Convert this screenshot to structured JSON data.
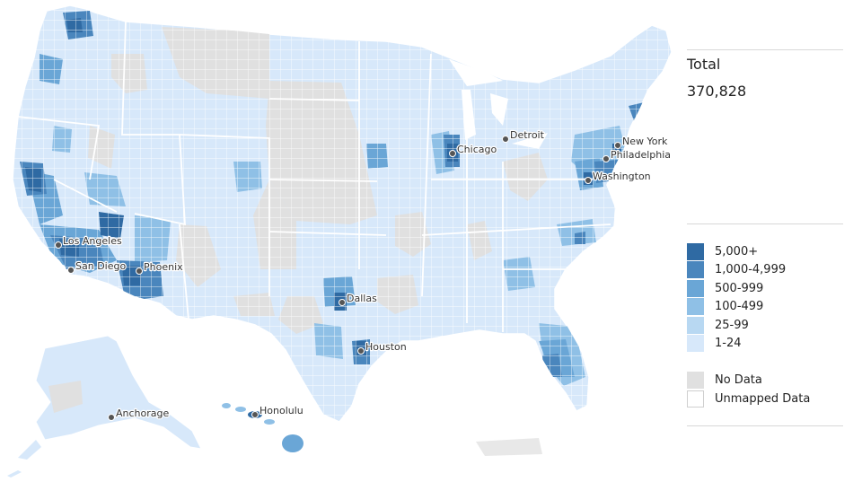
{
  "summary": {
    "title": "Total",
    "value": "370,828"
  },
  "legend": {
    "bins": [
      {
        "label": "5,000+",
        "color": "#2f6aa3"
      },
      {
        "label": "1,000-4,999",
        "color": "#4a86bd"
      },
      {
        "label": "500-999",
        "color": "#6aa6d6"
      },
      {
        "label": "100-499",
        "color": "#8fc0e6"
      },
      {
        "label": "25-99",
        "color": "#b8d8f2"
      },
      {
        "label": "1-24",
        "color": "#d7e8fa"
      }
    ],
    "extras": [
      {
        "label": "No Data",
        "color": "#e0e0e0"
      },
      {
        "label": "Unmapped Data",
        "color": "#ffffff"
      }
    ]
  },
  "cities": [
    {
      "name": "New York"
    },
    {
      "name": "Philadelphia"
    },
    {
      "name": "Washington"
    },
    {
      "name": "Detroit"
    },
    {
      "name": "Chicago"
    },
    {
      "name": "Dallas"
    },
    {
      "name": "Houston"
    },
    {
      "name": "Phoenix"
    },
    {
      "name": "Los Angeles"
    },
    {
      "name": "San Diego"
    },
    {
      "name": "Anchorage"
    },
    {
      "name": "Honolulu"
    }
  ],
  "colors": {
    "no_data": "#e0e0e0",
    "border": "#ffffff",
    "light": "#d7e8fa"
  }
}
